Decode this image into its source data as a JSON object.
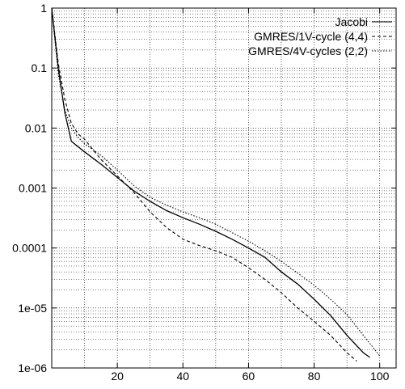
{
  "chart_data": {
    "type": "line",
    "title": "",
    "xlabel": "",
    "ylabel": "",
    "xlim": [
      0,
      105
    ],
    "ylim": [
      1e-06,
      1
    ],
    "y_scale": "log",
    "grid": true,
    "legend_position": "top-right",
    "x_ticks": [
      {
        "value": 20,
        "label": "20"
      },
      {
        "value": 40,
        "label": "40"
      },
      {
        "value": 60,
        "label": "60"
      },
      {
        "value": 80,
        "label": "80"
      },
      {
        "value": 100,
        "label": "100"
      }
    ],
    "y_ticks": [
      {
        "value": 1,
        "label": "1"
      },
      {
        "value": 0.1,
        "label": "0.1"
      },
      {
        "value": 0.01,
        "label": "0.01"
      },
      {
        "value": 0.001,
        "label": "0.001"
      },
      {
        "value": 0.0001,
        "label": "0.0001"
      },
      {
        "value": 1e-05,
        "label": "1e-05"
      },
      {
        "value": 1e-06,
        "label": "1e-06"
      }
    ],
    "series": [
      {
        "name": "Jacobi",
        "style": "solid",
        "x": [
          0,
          2,
          4,
          6,
          10,
          15,
          20,
          25,
          30,
          35,
          40,
          45,
          50,
          55,
          60,
          65,
          70,
          75,
          80,
          85,
          90,
          95,
          97
        ],
        "y": [
          1,
          0.1,
          0.018,
          0.006,
          0.004,
          0.0025,
          0.0015,
          0.0009,
          0.0006,
          0.00042,
          0.00032,
          0.00025,
          0.00019,
          0.00014,
          0.0001,
          7e-05,
          4e-05,
          2.5e-05,
          1.4e-05,
          7.5e-06,
          3.5e-06,
          1.8e-06,
          1.5e-06
        ]
      },
      {
        "name": "GMRES/1V-cycle (4,4)",
        "style": "dashed",
        "x": [
          0,
          2,
          4,
          6,
          8,
          10,
          15,
          20,
          25,
          30,
          35,
          40,
          45,
          50,
          55,
          60,
          65,
          70,
          75,
          80,
          85,
          90,
          93
        ],
        "y": [
          1,
          0.12,
          0.03,
          0.012,
          0.008,
          0.0065,
          0.003,
          0.0016,
          0.00085,
          0.0004,
          0.00022,
          0.00014,
          0.00011,
          9e-05,
          7e-05,
          4.7e-05,
          3e-05,
          1.8e-05,
          1e-05,
          6e-06,
          3.5e-06,
          1.8e-06,
          1.3e-06
        ]
      },
      {
        "name": "GMRES/4V-cycles (2,2)",
        "style": "dotted",
        "x": [
          0,
          2,
          4,
          6,
          8,
          10,
          15,
          20,
          25,
          30,
          35,
          40,
          45,
          50,
          55,
          60,
          65,
          70,
          75,
          80,
          85,
          90,
          95,
          100
        ],
        "y": [
          1,
          0.08,
          0.02,
          0.01,
          0.007,
          0.0055,
          0.0035,
          0.002,
          0.0011,
          0.0007,
          0.00052,
          0.0004,
          0.00032,
          0.00025,
          0.00018,
          0.00013,
          9e-05,
          6e-05,
          3.8e-05,
          2.4e-05,
          1.4e-05,
          7.8e-06,
          3.5e-06,
          1.6e-06
        ]
      }
    ]
  }
}
